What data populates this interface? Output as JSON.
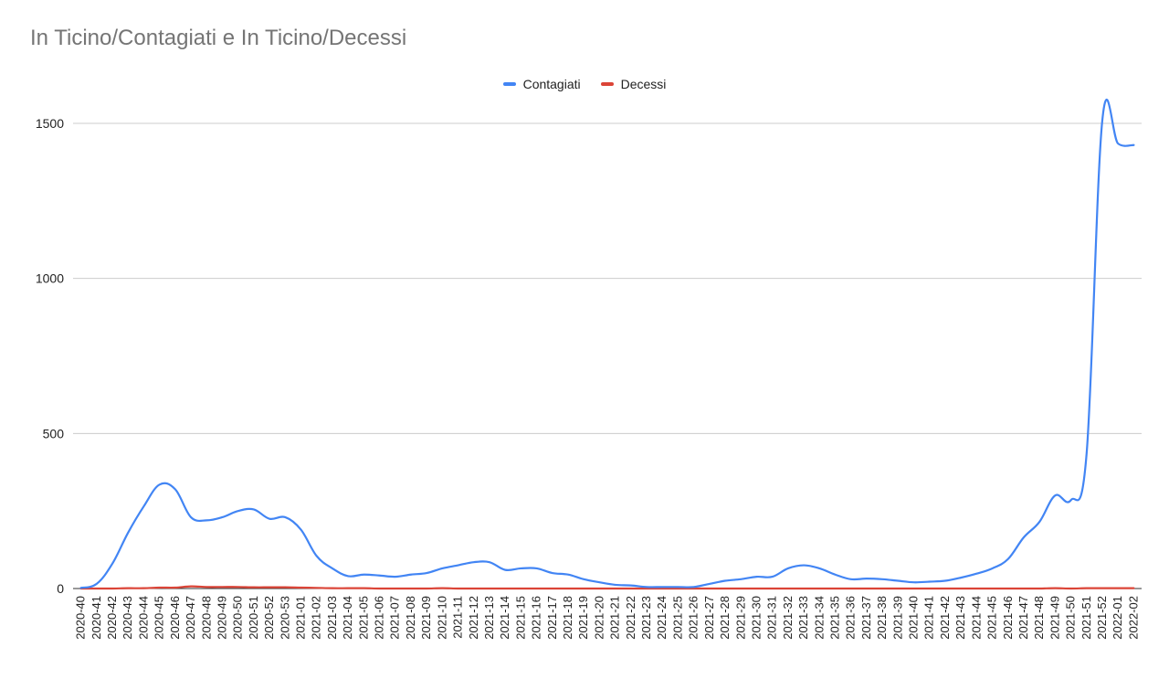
{
  "chart_data": {
    "type": "line",
    "title": "In Ticino/Contagiati e In Ticino/Decessi",
    "xlabel": "",
    "ylabel": "",
    "ylim": [
      0,
      1500
    ],
    "yticks": [
      0,
      500,
      1000,
      1500
    ],
    "grid": true,
    "legend_position": "top",
    "categories": [
      "2020-40",
      "2020-41",
      "2020-42",
      "2020-43",
      "2020-44",
      "2020-45",
      "2020-46",
      "2020-47",
      "2020-48",
      "2020-49",
      "2020-50",
      "2020-51",
      "2020-52",
      "2020-53",
      "2021-01",
      "2021-02",
      "2021-03",
      "2021-04",
      "2021-05",
      "2021-06",
      "2021-07",
      "2021-08",
      "2021-09",
      "2021-10",
      "2021-11",
      "2021-12",
      "2021-13",
      "2021-14",
      "2021-15",
      "2021-16",
      "2021-17",
      "2021-18",
      "2021-19",
      "2021-20",
      "2021-21",
      "2021-22",
      "2021-23",
      "2021-24",
      "2021-25",
      "2021-26",
      "2021-27",
      "2021-28",
      "2021-29",
      "2021-30",
      "2021-31",
      "2021-32",
      "2021-33",
      "2021-34",
      "2021-35",
      "2021-36",
      "2021-37",
      "2021-38",
      "2021-39",
      "2021-40",
      "2021-41",
      "2021-42",
      "2021-43",
      "2021-44",
      "2021-45",
      "2021-46",
      "2021-47",
      "2021-48",
      "2021-49",
      "2021-50",
      "2021-51",
      "2021-52",
      "2022-01",
      "2022-02"
    ],
    "series": [
      {
        "name": "Contagiati",
        "color": "#4285f4",
        "values": [
          2,
          15,
          80,
          180,
          265,
          335,
          320,
          230,
          220,
          230,
          250,
          255,
          225,
          230,
          190,
          105,
          65,
          40,
          45,
          42,
          38,
          45,
          50,
          65,
          75,
          85,
          85,
          60,
          65,
          65,
          50,
          45,
          30,
          20,
          12,
          10,
          5,
          5,
          5,
          5,
          15,
          25,
          30,
          38,
          38,
          65,
          75,
          65,
          45,
          30,
          32,
          30,
          25,
          20,
          22,
          25,
          35,
          48,
          65,
          95,
          165,
          215,
          300,
          285,
          435,
          1510,
          1435,
          1430
        ]
      },
      {
        "name": "Decessi",
        "color": "#db4437",
        "values": [
          0,
          0,
          0,
          1,
          1,
          3,
          3,
          7,
          5,
          5,
          5,
          4,
          4,
          4,
          3,
          2,
          1,
          1,
          1,
          0,
          0,
          0,
          0,
          1,
          0,
          0,
          0,
          0,
          0,
          0,
          0,
          0,
          0,
          0,
          0,
          0,
          0,
          0,
          0,
          0,
          0,
          0,
          0,
          0,
          0,
          0,
          0,
          0,
          0,
          0,
          0,
          0,
          0,
          0,
          0,
          0,
          0,
          0,
          0,
          0,
          0,
          0,
          1,
          0,
          1,
          1,
          1,
          1
        ]
      }
    ]
  }
}
